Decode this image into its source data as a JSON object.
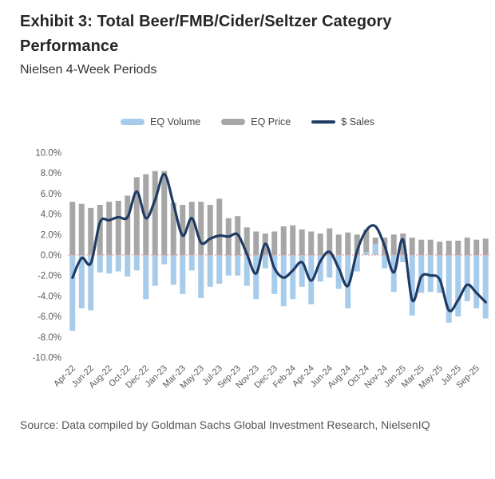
{
  "header": {
    "title": "Exhibit 3: Total Beer/FMB/Cider/Seltzer Category Performance",
    "subtitle": "Nielsen 4-Week Periods"
  },
  "legend": {
    "items": [
      {
        "label": "EQ Volume",
        "type": "bar",
        "color": "#A7CBEA"
      },
      {
        "label": "EQ Price",
        "type": "bar",
        "color": "#A6A6A6"
      },
      {
        "label": "$ Sales",
        "type": "line",
        "color": "#1F3B63"
      }
    ]
  },
  "chart_data": {
    "type": "bar+line",
    "title": "Total Beer/FMB/Cider/Seltzer Category Performance",
    "xlabel": "",
    "ylabel": "",
    "ylim": [
      -10,
      10
    ],
    "ytick_step": 2,
    "ytick_suffix": "%",
    "grid": false,
    "legend_position": "top",
    "zero_line_color": "#F0A59B",
    "axis_text_color": "#595959",
    "categories": [
      "Apr-22",
      "",
      "Jun-22",
      "",
      "Aug-22",
      "",
      "Oct-22",
      "",
      "Dec-22",
      "",
      "Jan-23",
      "",
      "Mar-23",
      "",
      "May-23",
      "",
      "Jul-23",
      "",
      "Sep-23",
      "",
      "Nov-23",
      "",
      "Dec-23",
      "",
      "Feb-24",
      "",
      "Apr-24",
      "",
      "Jun-24",
      "",
      "Aug-24",
      "",
      "Oct-24",
      "",
      "Nov-24",
      "",
      "Jan-25",
      "",
      "Mar-25",
      "",
      "May-25",
      "",
      "Jul-25",
      "",
      "Sep-25",
      ""
    ],
    "series": [
      {
        "name": "EQ Volume",
        "type": "bar",
        "color": "#A7CBEA",
        "values": [
          -7.4,
          -5.2,
          -5.4,
          -1.7,
          -1.8,
          -1.6,
          -2.1,
          -1.5,
          -4.3,
          -3.0,
          -0.9,
          -2.9,
          -3.8,
          -1.5,
          -4.2,
          -3.1,
          -2.8,
          -2.0,
          -2.0,
          -3.0,
          -4.3,
          -1.3,
          -3.8,
          -5.0,
          -4.3,
          -3.1,
          -4.8,
          -2.6,
          -2.2,
          -3.3,
          -5.2,
          -1.6,
          0.3,
          1.1,
          -1.3,
          -3.6,
          -0.7,
          -5.9,
          -3.7,
          -3.6,
          -3.7,
          -6.6,
          -6.0,
          -4.5,
          -5.2,
          -6.2
        ]
      },
      {
        "name": "EQ Price",
        "type": "bar",
        "color": "#A6A6A6",
        "values": [
          5.2,
          5.0,
          4.6,
          4.9,
          5.2,
          5.3,
          5.8,
          7.6,
          7.9,
          8.2,
          8.2,
          5.1,
          4.9,
          5.2,
          5.2,
          4.9,
          5.5,
          3.6,
          3.8,
          2.7,
          2.3,
          2.1,
          2.3,
          2.8,
          2.9,
          2.5,
          2.3,
          2.1,
          2.6,
          2.0,
          2.2,
          2.0,
          2.5,
          1.7,
          1.7,
          2.0,
          2.1,
          1.7,
          1.5,
          1.5,
          1.3,
          1.4,
          1.4,
          1.7,
          1.5,
          1.6
        ]
      },
      {
        "name": "$ Sales",
        "type": "line",
        "color": "#1F3B63",
        "values": [
          -2.2,
          -0.3,
          -0.8,
          3.2,
          3.4,
          3.7,
          3.7,
          6.2,
          3.6,
          5.4,
          7.9,
          5.0,
          1.9,
          3.6,
          1.2,
          1.6,
          1.9,
          1.8,
          2.0,
          0.1,
          -1.8,
          1.1,
          -1.3,
          -2.2,
          -1.5,
          -0.7,
          -2.5,
          -0.6,
          0.3,
          -1.3,
          -3.0,
          0.4,
          2.4,
          2.8,
          0.9,
          -1.7,
          1.5,
          -4.4,
          -2.1,
          -2.0,
          -2.4,
          -5.4,
          -4.4,
          -2.9,
          -3.7,
          -4.6
        ]
      }
    ]
  },
  "source": {
    "text": "Source: Data compiled by Goldman Sachs Global Investment Research, NielsenIQ"
  }
}
